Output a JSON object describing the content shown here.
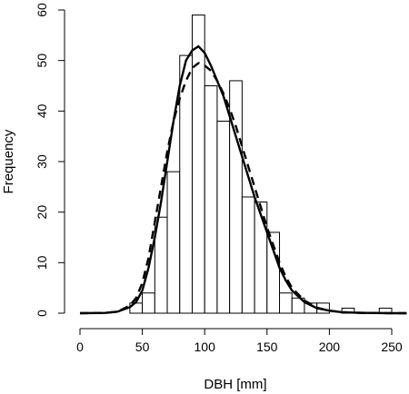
{
  "chart_data": {
    "type": "bar",
    "xlabel": "DBH [mm]",
    "ylabel": "Frequency",
    "xlim": [
      0,
      262
    ],
    "ylim": [
      0,
      60
    ],
    "x_ticks": [
      "0",
      "50",
      "100",
      "150",
      "200",
      "250"
    ],
    "y_ticks": [
      "0",
      "10",
      "20",
      "30",
      "40",
      "50",
      "60"
    ],
    "bin_width": 10,
    "bins": [
      {
        "start": 40,
        "end": 50,
        "count": 2
      },
      {
        "start": 50,
        "end": 60,
        "count": 4
      },
      {
        "start": 60,
        "end": 70,
        "count": 19
      },
      {
        "start": 70,
        "end": 80,
        "count": 28
      },
      {
        "start": 80,
        "end": 90,
        "count": 51
      },
      {
        "start": 90,
        "end": 100,
        "count": 59
      },
      {
        "start": 100,
        "end": 110,
        "count": 45
      },
      {
        "start": 110,
        "end": 120,
        "count": 38
      },
      {
        "start": 120,
        "end": 130,
        "count": 46
      },
      {
        "start": 130,
        "end": 140,
        "count": 23
      },
      {
        "start": 140,
        "end": 150,
        "count": 22
      },
      {
        "start": 150,
        "end": 160,
        "count": 16
      },
      {
        "start": 160,
        "end": 170,
        "count": 4
      },
      {
        "start": 170,
        "end": 180,
        "count": 3
      },
      {
        "start": 180,
        "end": 190,
        "count": 2
      },
      {
        "start": 190,
        "end": 200,
        "count": 2
      },
      {
        "start": 210,
        "end": 220,
        "count": 1
      },
      {
        "start": 240,
        "end": 250,
        "count": 1
      }
    ],
    "series": [
      {
        "style": "solid",
        "x": [
          0,
          20,
          30,
          40,
          45,
          50,
          55,
          60,
          65,
          70,
          75,
          80,
          85,
          90,
          95,
          100,
          105,
          110,
          115,
          120,
          125,
          130,
          135,
          140,
          145,
          150,
          155,
          160,
          165,
          170,
          180,
          190,
          200,
          210,
          220,
          230,
          250,
          262
        ],
        "y": [
          0,
          0.05,
          0.3,
          1.2,
          2.2,
          4.5,
          9,
          15,
          22,
          30,
          38,
          45,
          50,
          52,
          52.8,
          51.5,
          49,
          46,
          43,
          39,
          35,
          31,
          27,
          23,
          19.5,
          16,
          12.5,
          9,
          6.5,
          4.5,
          2.2,
          1,
          0.5,
          0.2,
          0.1,
          0.05,
          0,
          0
        ]
      },
      {
        "style": "dashed",
        "x": [
          0,
          20,
          30,
          40,
          45,
          50,
          55,
          60,
          65,
          70,
          75,
          80,
          85,
          90,
          95,
          100,
          105,
          110,
          115,
          120,
          125,
          130,
          135,
          140,
          145,
          150,
          155,
          160,
          165,
          170,
          180,
          190,
          200,
          210,
          220,
          230,
          250,
          262
        ],
        "y": [
          0,
          0.05,
          0.3,
          1.5,
          3,
          6,
          11,
          18,
          25,
          32,
          38,
          42.5,
          46,
          48.5,
          49.5,
          49,
          48,
          46,
          43.5,
          40.5,
          37,
          33,
          29,
          25,
          21,
          17,
          13.5,
          10,
          7.2,
          5,
          2.5,
          1.1,
          0.5,
          0.2,
          0.1,
          0.05,
          0,
          0
        ]
      }
    ]
  }
}
